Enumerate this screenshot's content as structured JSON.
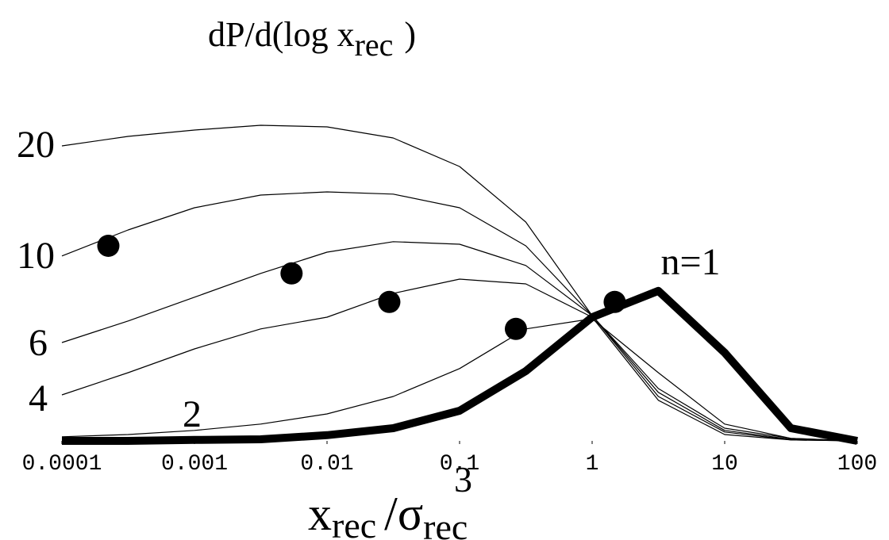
{
  "chart_data": {
    "type": "line",
    "title_parts": [
      "dP/d(log x",
      "rec",
      ")"
    ],
    "xlabel_parts": [
      "x",
      "rec",
      "/σ",
      "rec",
      "3"
    ],
    "log_x": true,
    "grid": false,
    "xlim": [
      0.0001,
      100
    ],
    "xticks": [
      0.0001,
      0.001,
      0.01,
      0.1,
      1,
      10,
      100
    ],
    "ylim": [
      0,
      1.1
    ],
    "x": [
      0.0001,
      0.000316,
      0.001,
      0.00316,
      0.01,
      0.0316,
      0.1,
      0.316,
      1,
      3.16,
      10,
      31.6,
      100
    ],
    "series": [
      {
        "name": "20",
        "color": "#000000",
        "values": [
          0.93,
          0.96,
          0.98,
          0.995,
          0.99,
          0.955,
          0.865,
          0.69,
          0.395,
          0.165,
          0.04,
          0.008,
          0
        ]
      },
      {
        "name": "10",
        "color": "#000000",
        "values": [
          0.583,
          0.665,
          0.735,
          0.775,
          0.785,
          0.778,
          0.735,
          0.615,
          0.395,
          0.153,
          0.033,
          0.005,
          0
        ],
        "point": {
          "x": 0.000224,
          "y": 0.615
        }
      },
      {
        "name": "6",
        "color": "#000000",
        "values": [
          0.31,
          0.378,
          0.453,
          0.528,
          0.595,
          0.628,
          0.62,
          0.553,
          0.395,
          0.14,
          0.028,
          0.003,
          0
        ],
        "point": {
          "x": 0.0054,
          "y": 0.528
        }
      },
      {
        "name": "4",
        "color": "#000000",
        "values": [
          0.145,
          0.215,
          0.29,
          0.353,
          0.39,
          0.465,
          0.51,
          0.495,
          0.39,
          0.128,
          0.02,
          0.003,
          0
        ],
        "point": {
          "x": 0.0295,
          "y": 0.438
        }
      },
      {
        "name": "2",
        "color": "#000000",
        "values": [
          0.013,
          0.02,
          0.033,
          0.053,
          0.085,
          0.14,
          0.228,
          0.353,
          0.385,
          0.215,
          0.053,
          0.008,
          0
        ],
        "point": {
          "x": 0.266,
          "y": 0.353
        }
      },
      {
        "name": "n=1",
        "color": "#000000",
        "values": [
          0,
          0,
          0.003,
          0.005,
          0.018,
          0.04,
          0.095,
          0.22,
          0.39,
          0.473,
          0.278,
          0.04,
          0
        ],
        "point": {
          "x": 1.48,
          "y": 0.438
        }
      }
    ]
  }
}
